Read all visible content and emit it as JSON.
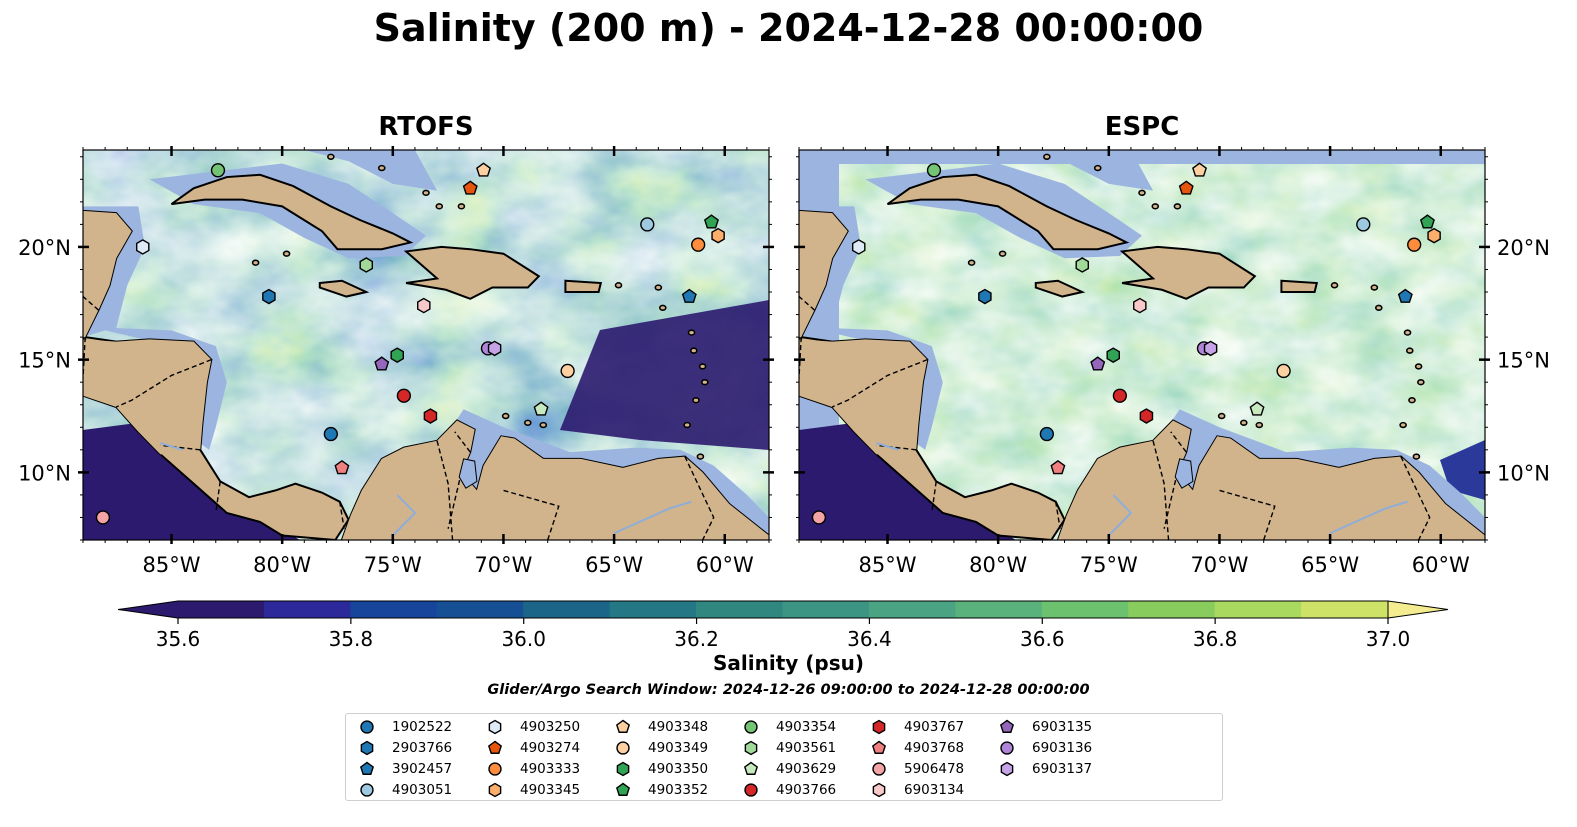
{
  "title": "Salinity (200 m) - 2024-12-28 00:00:00",
  "panels": [
    {
      "title": "RTOFS"
    },
    {
      "title": "ESPC"
    }
  ],
  "axes": {
    "lon_ticks": [
      "85°W",
      "80°W",
      "75°W",
      "70°W",
      "65°W",
      "60°W"
    ],
    "lat_ticks": [
      "20°N",
      "15°N",
      "10°N"
    ],
    "lon_range": [
      -89,
      -58
    ],
    "lat_range": [
      7,
      24.3
    ]
  },
  "colorbar": {
    "label": "Salinity (psu)",
    "ticks": [
      "35.6",
      "35.8",
      "36.0",
      "36.2",
      "36.4",
      "36.6",
      "36.8",
      "37.0"
    ],
    "min": 35.6,
    "max": 37.0,
    "colors": [
      "#2b1a6e",
      "#2c2a9a",
      "#17459c",
      "#164f93",
      "#1b6589",
      "#247784",
      "#2f8780",
      "#3c9583",
      "#4aa383",
      "#59b27c",
      "#6bc16d",
      "#88cc5e",
      "#aad95f",
      "#cfe268",
      "#f3ed8f"
    ]
  },
  "colors": {
    "land": "#d2b48c",
    "shelf": "#9bb5e0",
    "deep_sea": "#2b1a6e"
  },
  "search_window": "Glider/Argo Search Window: 2024-12-26 09:00:00 to 2024-12-28 00:00:00",
  "floats": [
    {
      "id": "1902522",
      "color": "#1f77b4",
      "shape": "circle"
    },
    {
      "id": "2903766",
      "color": "#1f77b4",
      "shape": "hexagon",
      "lon": -80.6,
      "lat": 17.8
    },
    {
      "id": "3902457",
      "color": "#1f77b4",
      "shape": "pentagon",
      "lon": -61.6,
      "lat": 17.8
    },
    {
      "id": "4903051",
      "color": "#9ecae1",
      "shape": "circle",
      "lon": -63.5,
      "lat": 21.0
    },
    {
      "id": "4903250",
      "color": "#deebf7",
      "shape": "hexagon",
      "lon": -86.3,
      "lat": 20.0
    },
    {
      "id": "4903274",
      "color": "#e6550d",
      "shape": "pentagon",
      "lon": -71.5,
      "lat": 22.6
    },
    {
      "id": "4903333",
      "color": "#fd8d3c",
      "shape": "circle",
      "lon": -61.2,
      "lat": 20.1
    },
    {
      "id": "4903345",
      "color": "#fdae6b",
      "shape": "hexagon",
      "lon": -60.3,
      "lat": 20.5
    },
    {
      "id": "4903348",
      "color": "#fdd0a2",
      "shape": "pentagon",
      "lon": -70.9,
      "lat": 23.4
    },
    {
      "id": "4903349",
      "color": "#fdd0a2",
      "shape": "circle",
      "lon": -67.1,
      "lat": 14.5
    },
    {
      "id": "4903350",
      "color": "#31a354",
      "shape": "hexagon",
      "lon": -74.8,
      "lat": 15.2
    },
    {
      "id": "4903352",
      "color": "#31a354",
      "shape": "pentagon",
      "lon": -60.6,
      "lat": 21.1
    },
    {
      "id": "4903354",
      "color": "#74c476",
      "shape": "circle",
      "lon": -82.9,
      "lat": 23.4
    },
    {
      "id": "4903561",
      "color": "#a1d99b",
      "shape": "hexagon",
      "lon": -76.2,
      "lat": 19.2
    },
    {
      "id": "4903629",
      "color": "#c7e9c0",
      "shape": "pentagon",
      "lon": -68.3,
      "lat": 12.8
    },
    {
      "id": "4903766",
      "color": "#d62728",
      "shape": "circle",
      "lon": -74.5,
      "lat": 13.4
    },
    {
      "id": "4903767",
      "color": "#d62728",
      "shape": "hexagon",
      "lon": -73.3,
      "lat": 12.5
    },
    {
      "id": "4903768",
      "color": "#f08080",
      "shape": "pentagon",
      "lon": -77.3,
      "lat": 10.2
    },
    {
      "id": "5906478",
      "color": "#f4a4a4",
      "shape": "circle",
      "lon": -88.1,
      "lat": 8.0
    },
    {
      "id": "6903134",
      "color": "#f9c9c9",
      "shape": "hexagon",
      "lon": -73.6,
      "lat": 17.4
    },
    {
      "id": "6903135",
      "color": "#9467bd",
      "shape": "pentagon",
      "lon": -75.5,
      "lat": 14.8
    },
    {
      "id": "6903136",
      "color": "#b084d6",
      "shape": "circle",
      "lon": -70.7,
      "lat": 15.5
    },
    {
      "id": "6903137",
      "color": "#c5a3e6",
      "shape": "hexagon",
      "lon": -70.4,
      "lat": 15.5
    }
  ],
  "extra_markers": [
    {
      "float": "1902522",
      "lon": -77.8,
      "lat": 11.7
    }
  ]
}
